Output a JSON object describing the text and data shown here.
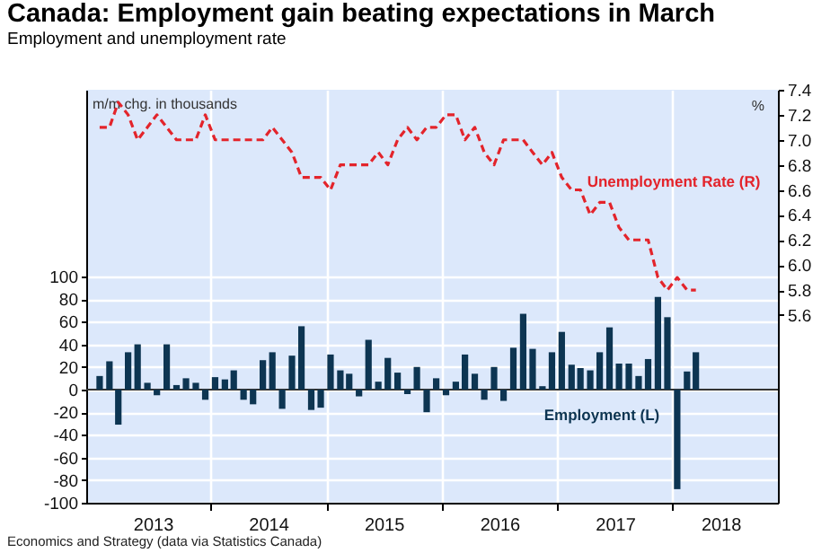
{
  "chart_data": {
    "type": "bar",
    "title": "Canada: Employment gain beating expectations in March",
    "subtitle": "Employment and unemployment rate",
    "ylabel": "m/m chg. in thousands",
    "y2label": "%",
    "annotations": [
      "Economics and Strategy (data via Statistics Canada)"
    ],
    "x": [
      "2013-01-15",
      "2013-02-15",
      "2013-03-15",
      "2013-04-15",
      "2013-05-15",
      "2013-06-15",
      "2013-07-15",
      "2013-08-15",
      "2013-09-15",
      "2013-10-15",
      "2013-11-15",
      "2013-12-15",
      "2014-01-15",
      "2014-02-15",
      "2014-03-15",
      "2014-04-15",
      "2014-05-15",
      "2014-06-15",
      "2014-07-15",
      "2014-08-15",
      "2014-09-15",
      "2014-10-15",
      "2014-11-15",
      "2014-12-15",
      "2015-01-15",
      "2015-02-15",
      "2015-03-15",
      "2015-04-15",
      "2015-05-15",
      "2015-06-15",
      "2015-07-15",
      "2015-08-15",
      "2015-09-15",
      "2015-10-15",
      "2015-11-15",
      "2015-12-15",
      "2016-01-15",
      "2016-02-15",
      "2016-03-15",
      "2016-04-15",
      "2016-05-15",
      "2016-06-15",
      "2016-07-15",
      "2016-08-15",
      "2016-09-15",
      "2016-10-15",
      "2016-11-15",
      "2016-12-15",
      "2017-01-15",
      "2017-02-15",
      "2017-03-15",
      "2017-04-15",
      "2017-05-15",
      "2017-06-15",
      "2017-07-15",
      "2017-08-15",
      "2017-09-15",
      "2017-10-15",
      "2017-11-15",
      "2017-12-15",
      "2018-01-15",
      "2018-02-15",
      "2018-03-15"
    ],
    "series": [
      {
        "name": "Employment (L)",
        "color": "#0d3552",
        "values": [
          12,
          25,
          -31,
          33,
          40,
          6,
          -5,
          40,
          4,
          10,
          6,
          -9,
          11,
          9,
          17,
          -9,
          -13,
          26,
          33,
          -17,
          30,
          56,
          -18,
          -16,
          31,
          17,
          14,
          -6,
          44,
          7,
          28,
          15,
          -4,
          20,
          -20,
          10,
          -5,
          7,
          31,
          14,
          -9,
          20,
          -10,
          37,
          67,
          36,
          3,
          33,
          51,
          22,
          19,
          17,
          33,
          55,
          23,
          23,
          12,
          27,
          82,
          64,
          -88,
          16,
          33
        ]
      },
      {
        "name": "Unemployment Rate (R)",
        "type": "line",
        "axis": "y2",
        "line_style": "dashed",
        "color": "#e3242b",
        "values": [
          7.1,
          7.1,
          7.3,
          7.2,
          7.0,
          7.1,
          7.2,
          7.1,
          7.0,
          7.0,
          7.0,
          7.2,
          7.0,
          7.0,
          7.0,
          7.0,
          7.0,
          7.0,
          7.1,
          7.0,
          6.9,
          6.7,
          6.7,
          6.7,
          6.6,
          6.8,
          6.8,
          6.8,
          6.8,
          6.9,
          6.8,
          7.0,
          7.1,
          7.0,
          7.1,
          7.1,
          7.2,
          7.2,
          7.0,
          7.1,
          6.9,
          6.8,
          7.0,
          7.0,
          7.0,
          6.9,
          6.8,
          6.9,
          6.7,
          6.6,
          6.6,
          6.4,
          6.5,
          6.5,
          6.3,
          6.2,
          6.2,
          6.2,
          5.9,
          5.8,
          5.9,
          5.8,
          5.8
        ]
      }
    ],
    "xlim": [
      "2013-01-01",
      "2018-11-01"
    ],
    "xticks": [
      {
        "value": "2013-07-02",
        "label": "2013"
      },
      {
        "value": "2014-01-01",
        "label": null
      },
      {
        "value": "2014-07-02",
        "label": "2014"
      },
      {
        "value": "2015-01-01",
        "label": null
      },
      {
        "value": "2015-07-02",
        "label": "2015"
      },
      {
        "value": "2016-01-01",
        "label": null
      },
      {
        "value": "2016-07-02",
        "label": "2016"
      },
      {
        "value": "2017-01-01",
        "label": null
      },
      {
        "value": "2017-07-02",
        "label": "2017"
      },
      {
        "value": "2018-01-01",
        "label": null
      },
      {
        "value": "2018-06-01",
        "label": "2018"
      }
    ],
    "ylim": [
      -100,
      265
    ],
    "yticks": [
      -100,
      -80,
      -60,
      -40,
      -20,
      0,
      20,
      40,
      60,
      80,
      100
    ],
    "y2lim": [
      4.1,
      7.4
    ],
    "y2ticks": [
      5.6,
      5.8,
      {
        "value": 6,
        "label": "6.0"
      },
      6.2,
      6.4,
      6.6,
      6.8,
      {
        "value": 7,
        "label": "7.0"
      },
      7.2,
      7.4
    ],
    "ref_lines": [
      {
        "axis": "y",
        "value": 0,
        "color": "#333333"
      }
    ],
    "grid": true
  }
}
